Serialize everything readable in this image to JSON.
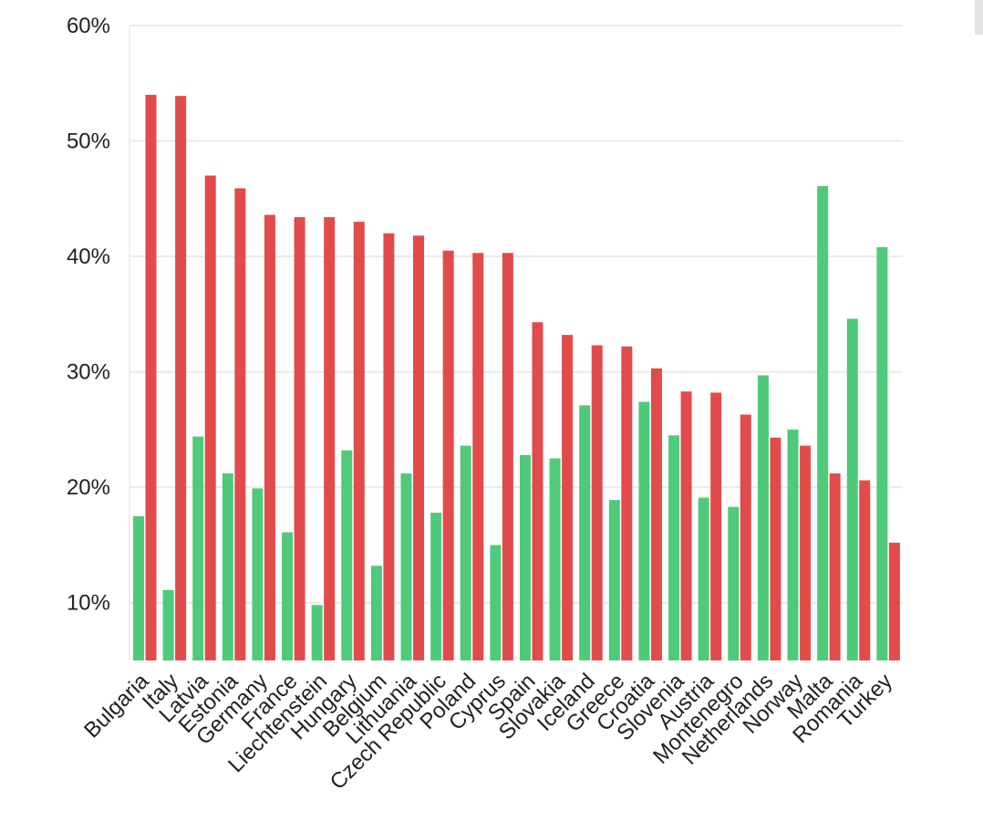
{
  "chart_data": {
    "type": "bar",
    "title": "",
    "xlabel": "",
    "ylabel": "",
    "ylim": [
      5,
      60
    ],
    "yticks": [
      10,
      20,
      30,
      40,
      50,
      60
    ],
    "ytick_labels": [
      "10%",
      "20%",
      "30%",
      "40%",
      "50%",
      "60%"
    ],
    "grid": true,
    "legend": "none",
    "categories": [
      "Bulgaria",
      "Italy",
      "Latvia",
      "Estonia",
      "Germany",
      "France",
      "Liechtenstein",
      "Hungary",
      "Belgium",
      "Lithuania",
      "Czech Republic",
      "Poland",
      "Cyprus",
      "Spain",
      "Slovakia",
      "Iceland",
      "Greece",
      "Croatia",
      "Slovenia",
      "Austria",
      "Montenegro",
      "Netherlands",
      "Norway",
      "Malta",
      "Romania",
      "Turkey"
    ],
    "series": [
      {
        "color": "#4fc97a",
        "values": [
          17.5,
          11.1,
          24.4,
          21.2,
          19.9,
          16.1,
          9.8,
          23.2,
          13.2,
          21.2,
          17.8,
          23.6,
          15.0,
          22.8,
          22.5,
          27.1,
          18.9,
          27.4,
          24.5,
          19.1,
          18.3,
          29.7,
          25.0,
          46.1,
          34.6,
          40.8
        ]
      },
      {
        "color": "#e24b4b",
        "values": [
          54.0,
          53.9,
          47.0,
          45.9,
          43.6,
          43.4,
          43.4,
          43.0,
          42.0,
          41.8,
          40.5,
          40.3,
          40.3,
          34.3,
          33.2,
          32.3,
          32.2,
          30.3,
          28.3,
          28.2,
          26.3,
          24.3,
          23.6,
          21.2,
          20.6,
          15.2
        ]
      }
    ]
  }
}
